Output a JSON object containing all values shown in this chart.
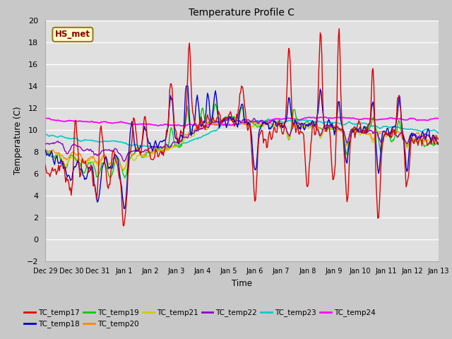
{
  "title": "Temperature Profile C",
  "ylabel": "Temperature (C)",
  "xlabel": "Time",
  "annotation": "HS_met",
  "ylim": [
    -2,
    20
  ],
  "yticks": [
    -2,
    0,
    2,
    4,
    6,
    8,
    10,
    12,
    14,
    16,
    18,
    20
  ],
  "series_colors": {
    "TC_temp17": "#dd0000",
    "TC_temp18": "#0000cc",
    "TC_temp19": "#00cc00",
    "TC_temp20": "#ff8800",
    "TC_temp21": "#cccc00",
    "TC_temp22": "#8800cc",
    "TC_temp23": "#00cccc",
    "TC_temp24": "#ff00ff"
  },
  "tick_labels": [
    "Dec 29",
    "Dec 30",
    "Dec 31",
    "Jan 1",
    "Jan 2",
    "Jan 3",
    "Jan 4",
    "Jan 5",
    "Jan 6",
    "Jan 7",
    "Jan 8",
    "Jan 9",
    "Jan 10",
    "Jan 11",
    "Jan 12",
    "Jan 13"
  ],
  "tick_positions": [
    0,
    1,
    2,
    3,
    4,
    5,
    6,
    7,
    8,
    9,
    10,
    11,
    12,
    13,
    14,
    15
  ],
  "fig_bg": "#c8c8c8",
  "plot_bg": "#e0e0e0",
  "grid_color": "#ffffff",
  "font_family": "DejaVu Sans"
}
